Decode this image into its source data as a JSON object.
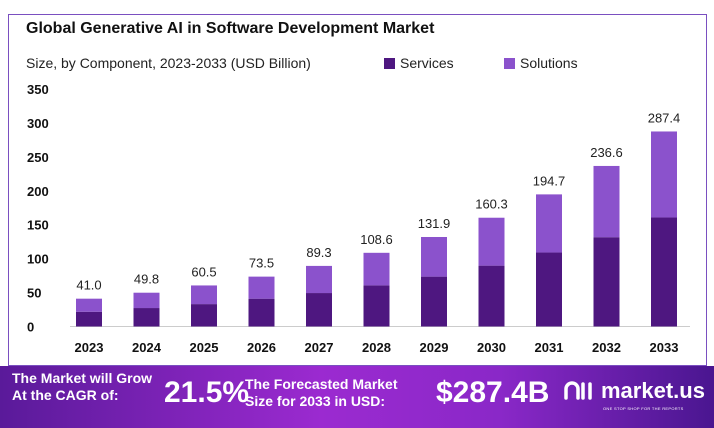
{
  "chart_data": {
    "type": "bar",
    "stacked": true,
    "title": "Global Generative AI in Software Development Market",
    "subtitle": "Size, by Component, 2023-2033 (USD Billion)",
    "categories": [
      "2023",
      "2024",
      "2025",
      "2026",
      "2027",
      "2028",
      "2029",
      "2030",
      "2031",
      "2032",
      "2033"
    ],
    "series": [
      {
        "name": "Services",
        "color": "#4e1780",
        "values": [
          21.7,
          27.2,
          33.0,
          41.0,
          49.3,
          60.6,
          73.5,
          89.7,
          109.0,
          131.6,
          160.7
        ]
      },
      {
        "name": "Solutions",
        "color": "#8b52cc",
        "values": [
          19.3,
          22.6,
          27.5,
          32.5,
          40.0,
          48.0,
          58.4,
          70.6,
          85.7,
          105.0,
          126.7
        ]
      }
    ],
    "totals": [
      "41.0",
      "49.8",
      "60.5",
      "73.5",
      "89.3",
      "108.6",
      "131.9",
      "160.3",
      "194.7",
      "236.6",
      "287.4"
    ],
    "yticks": [
      0,
      50,
      100,
      150,
      200,
      250,
      300,
      350
    ],
    "ylim": [
      0,
      350
    ],
    "grid": false,
    "legend": "top"
  },
  "banner": {
    "cagr_label_1": "The Market will Grow",
    "cagr_label_2": "At the CAGR of:",
    "cagr_value": "21.5%",
    "forecast_label_1": "The Forecasted Market",
    "forecast_label_2": "Size for 2033 in USD:",
    "forecast_value": "$287.4B",
    "logo": "market.us",
    "tagline": "ONE STOP SHOP FOR THE REPORTS"
  }
}
